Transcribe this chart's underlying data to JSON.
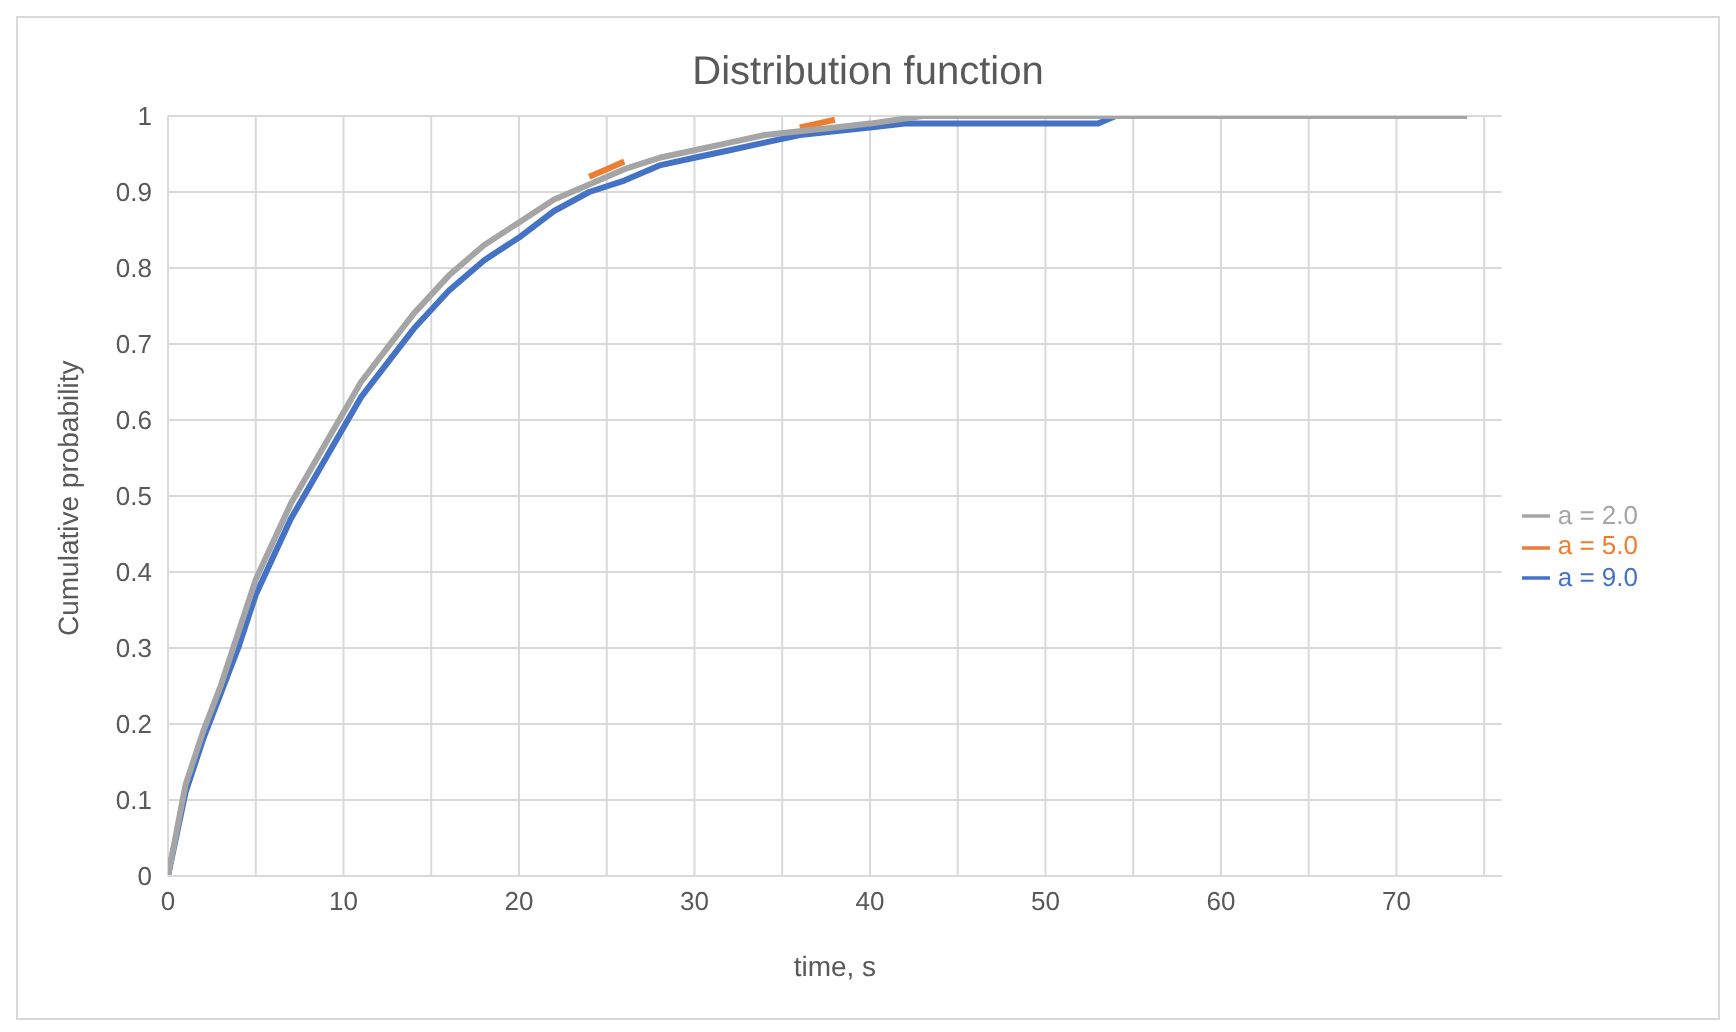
{
  "chart_data": {
    "type": "line",
    "title": "Distribution function",
    "xlabel": "time, s",
    "ylabel": "Cumulative probability",
    "xlim": [
      0,
      76
    ],
    "xticks": [
      0,
      {
        "value": 5,
        "label": null
      },
      10,
      {
        "value": 15,
        "label": null
      },
      20,
      {
        "value": 25,
        "label": null
      },
      30,
      {
        "value": 35,
        "label": null
      },
      40,
      {
        "value": 45,
        "label": null
      },
      50,
      {
        "value": 55,
        "label": null
      },
      60,
      {
        "value": 65,
        "label": null
      },
      70,
      {
        "value": 75,
        "label": null
      }
    ],
    "ylim": [
      0,
      1
    ],
    "yticks": [
      0,
      0.1,
      0.2,
      0.3,
      0.4,
      0.5,
      0.6,
      0.7,
      0.8,
      0.9,
      1
    ],
    "grid": true,
    "legend": "right",
    "marker": "none",
    "line_style": "solid",
    "series": [
      {
        "name": "a = 9.0",
        "color": "#4472c4",
        "x": [
          0,
          1,
          2,
          3,
          4,
          5,
          6,
          7,
          8,
          9,
          10,
          11,
          12,
          14,
          16,
          18,
          20,
          22,
          24,
          26,
          28,
          30,
          32,
          34,
          36,
          38,
          40,
          42,
          46,
          53,
          54,
          74
        ],
        "values": [
          0,
          0.11,
          0.18,
          0.24,
          0.3,
          0.37,
          0.42,
          0.47,
          0.51,
          0.55,
          0.59,
          0.63,
          0.66,
          0.72,
          0.77,
          0.81,
          0.84,
          0.875,
          0.9,
          0.915,
          0.935,
          0.945,
          0.955,
          0.965,
          0.975,
          0.98,
          0.985,
          0.99,
          0.99,
          0.99,
          1,
          1
        ]
      },
      {
        "name": "a = 5.0",
        "color": "#ed7d31",
        "x": [
          24,
          25,
          26,
          30,
          36,
          37,
          38
        ],
        "values": [
          0.92,
          0.93,
          0.94,
          null,
          0.985,
          0.99,
          0.995
        ]
      },
      {
        "name": "a = 2.0",
        "color": "#a5a5a5",
        "x": [
          0,
          1,
          2,
          3,
          4,
          5,
          6,
          7,
          8,
          9,
          10,
          11,
          12,
          14,
          16,
          18,
          20,
          22,
          24,
          26,
          28,
          30,
          32,
          34,
          36,
          38,
          40,
          43,
          74
        ],
        "values": [
          0,
          0.12,
          0.19,
          0.25,
          0.32,
          0.39,
          0.44,
          0.49,
          0.53,
          0.57,
          0.61,
          0.65,
          0.68,
          0.74,
          0.79,
          0.83,
          0.86,
          0.89,
          0.91,
          0.93,
          0.945,
          0.955,
          0.965,
          0.975,
          0.98,
          0.985,
          0.99,
          1,
          1
        ]
      }
    ]
  }
}
